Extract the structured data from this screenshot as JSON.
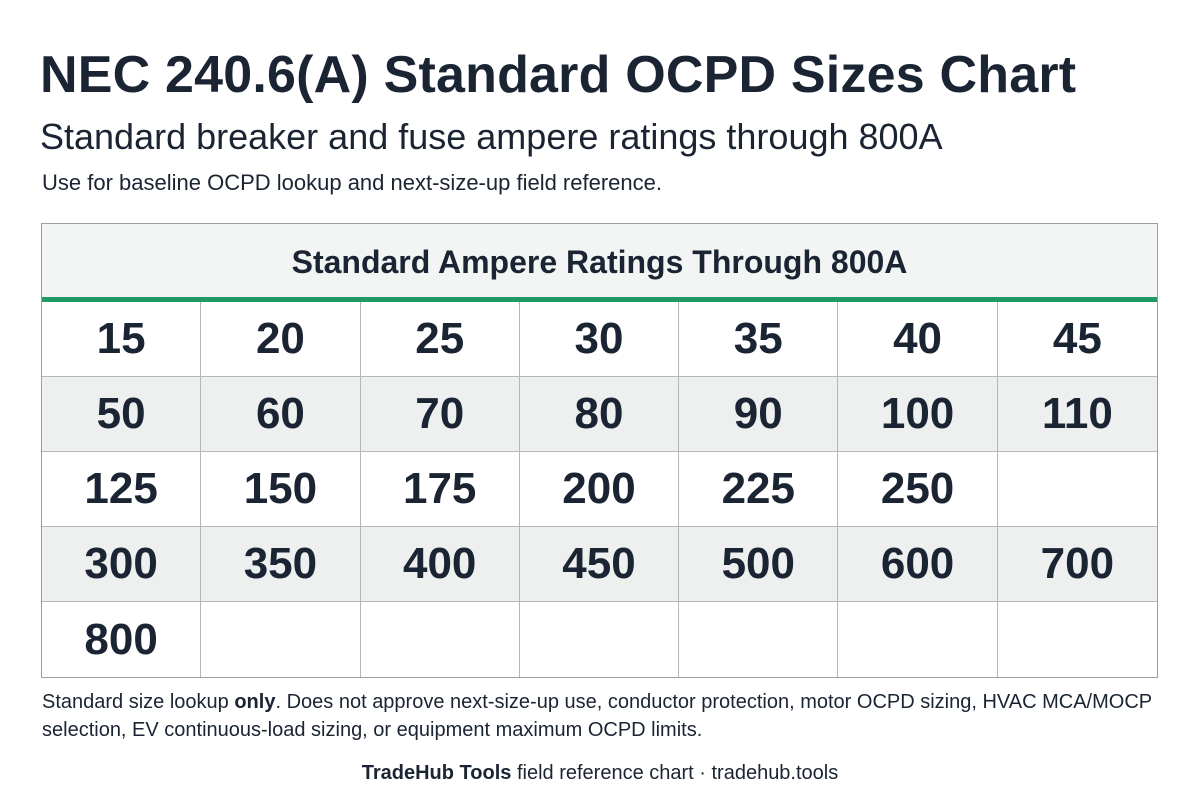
{
  "header": {
    "title": "NEC 240.6(A) Standard OCPD Sizes Chart",
    "subtitle": "Standard breaker and fuse ampere ratings through 800A",
    "note": "Use for baseline OCPD lookup and next-size-up field reference."
  },
  "table": {
    "heading": "Standard Ampere Ratings Through 800A",
    "rows": [
      [
        "15",
        "20",
        "25",
        "30",
        "35",
        "40",
        "45"
      ],
      [
        "50",
        "60",
        "70",
        "80",
        "90",
        "100",
        "110"
      ],
      [
        "125",
        "150",
        "175",
        "200",
        "225",
        "250",
        ""
      ],
      [
        "300",
        "350",
        "400",
        "450",
        "500",
        "600",
        "700"
      ],
      [
        "800",
        "",
        "",
        "",
        "",
        "",
        ""
      ]
    ]
  },
  "disclaimer": {
    "before": "Standard size lookup ",
    "emphasis": "only",
    "after": ". Does not approve next-size-up use, conductor protection, motor OCPD sizing, HVAC MCA/MOCP selection, EV continuous-load sizing, or equipment maximum OCPD limits."
  },
  "footer": {
    "brand": "TradeHub Tools",
    "rest": " field reference chart · tradehub.tools"
  },
  "colors": {
    "text": "#1b2433",
    "accent_rule": "#1f9966",
    "header_bg": "#f3f4f4",
    "shaded_row_bg": "#eeefef",
    "grid_line": "#b3b7bb"
  }
}
